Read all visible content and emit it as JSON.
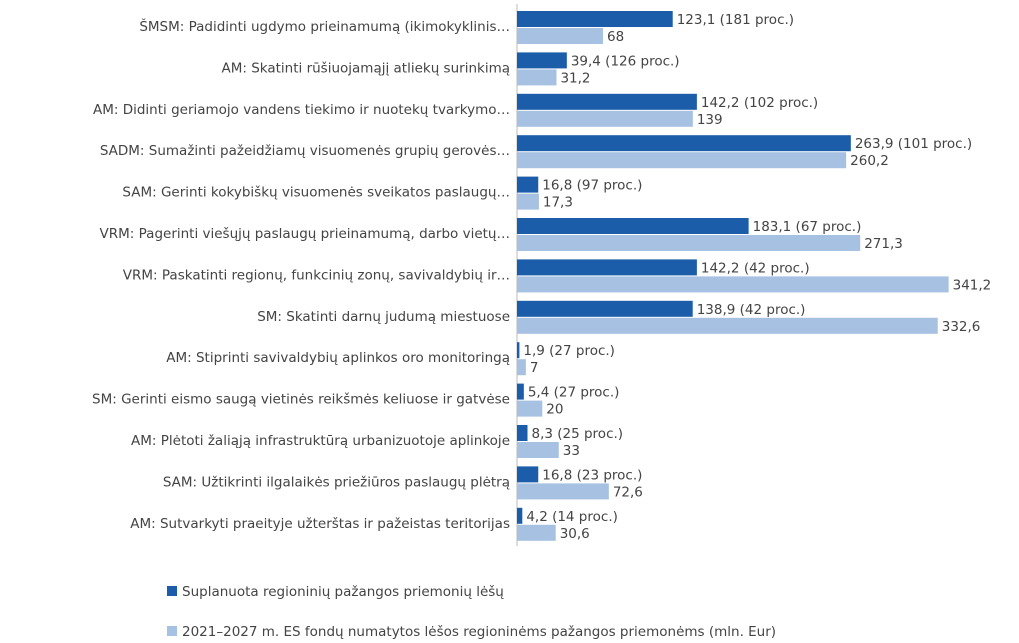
{
  "chart_data": {
    "type": "hbar",
    "categories": [
      "ŠMSM: Padidinti ugdymo prieinamumą (ikimokyklinis…",
      "AM: Skatinti rūšiuojamąjį atliekų surinkimą",
      "AM: Didinti geriamojo vandens tiekimo ir nuotekų tvarkymo…",
      "SADM: Sumažinti pažeidžiamų visuomenės grupių gerovės…",
      "SAM: Gerinti kokybiškų visuomenės sveikatos paslaugų…",
      "VRM: Pagerinti viešųjų paslaugų prieinamumą, darbo vietų…",
      "VRM: Paskatinti regionų, funkcinių zonų, savivaldybių ir…",
      "SM: Skatinti darnų judumą miestuose",
      "AM: Stiprinti savivaldybių aplinkos oro monitoringą",
      "SM: Gerinti eismo saugą vietinės reikšmės keliuose ir gatvėse",
      "AM: Plėtoti žaliąją infrastruktūrą urbanizuotoje aplinkoje",
      "SAM: Užtikrinti ilgalaikės priežiūros paslaugų plėtrą",
      "AM: Sutvarkyti praeityje užterštas ir pažeistas teritorijas"
    ],
    "series": [
      {
        "name": "Suplanuota regioninių pažangos priemonių lėšų",
        "color": "#1b5da8",
        "values": [
          123.1,
          39.4,
          142.2,
          263.9,
          16.8,
          183.1,
          142.2,
          138.9,
          1.9,
          5.4,
          8.3,
          16.8,
          4.2
        ],
        "value_labels": [
          "123,1 (181 proc.)",
          "39,4 (126 proc.)",
          "142,2 (102 proc.)",
          "263,9 (101 proc.)",
          "16,8 (97 proc.)",
          "183,1 (67 proc.)",
          "142,2 (42 proc.)",
          "138,9 (42 proc.)",
          "1,9 (27 proc.)",
          "5,4 (27 proc.)",
          "8,3 (25 proc.)",
          "16,8 (23 proc.)",
          "4,2 (14 proc.)"
        ]
      },
      {
        "name": "2021–2027 m. ES fondų numatytos lėšos regioninėms pažangos priemonėms (mln. Eur)",
        "color": "#a6c1e2",
        "values": [
          68,
          31.2,
          139,
          260.2,
          17.3,
          271.3,
          341.2,
          332.6,
          7,
          20,
          33,
          72.6,
          30.6
        ],
        "value_labels": [
          "68",
          "31,2",
          "139",
          "260,2",
          "17,3",
          "271,3",
          "341,2",
          "332,6",
          "7",
          "20",
          "33",
          "72,6",
          "30,6"
        ]
      }
    ]
  }
}
